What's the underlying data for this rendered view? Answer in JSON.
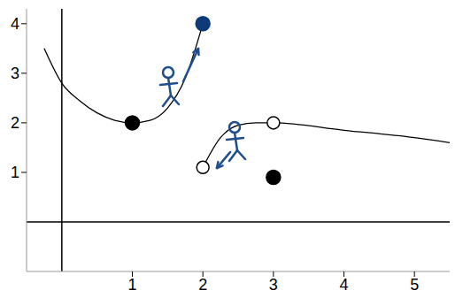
{
  "chart_data": {
    "type": "line",
    "xlim": [
      -0.5,
      5.5
    ],
    "ylim": [
      -1,
      4.3
    ],
    "xticks": [
      1,
      2,
      3,
      4,
      5
    ],
    "yticks": [
      1,
      2,
      3,
      4
    ],
    "series": [
      {
        "color": "#000000",
        "x": [
          -0.25,
          0,
          0.25,
          0.5,
          0.75,
          1,
          1.25,
          1.5,
          1.75,
          2
        ],
        "values": [
          3.5,
          2.8,
          2.45,
          2.2,
          2.05,
          2,
          2.05,
          2.3,
          2.9,
          4
        ]
      },
      {
        "color": "#000000",
        "x": [
          2,
          2.25,
          2.5,
          2.75,
          3,
          4,
          5,
          5.5
        ],
        "values": [
          1.1,
          1.7,
          1.95,
          2.0,
          2.0,
          1.85,
          1.7,
          1.6
        ]
      },
      {
        "type": "scatter",
        "marker": "filled",
        "color": "#000000",
        "x": [
          1,
          3
        ],
        "values": [
          2,
          0.9
        ]
      },
      {
        "type": "scatter",
        "marker": "filled",
        "color": "#0d3b7a",
        "x": [
          2
        ],
        "values": [
          4
        ]
      },
      {
        "type": "scatter",
        "marker": "open",
        "color": "#000000",
        "x": [
          2,
          3
        ],
        "values": [
          1.1,
          2
        ]
      }
    ]
  }
}
